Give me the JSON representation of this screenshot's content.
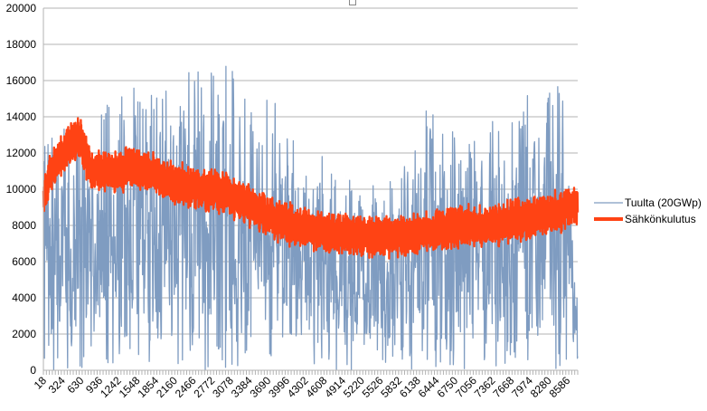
{
  "chart_data": {
    "type": "line",
    "title": "",
    "xlabel": "",
    "ylabel": "",
    "ylim": [
      0,
      20000
    ],
    "y_ticks": [
      "0",
      "2000",
      "4000",
      "6000",
      "8000",
      "10000",
      "12000",
      "14000",
      "16000",
      "18000",
      "20000"
    ],
    "x_ticks": [
      "18",
      "324",
      "630",
      "936",
      "1242",
      "1548",
      "1854",
      "2160",
      "2466",
      "2772",
      "3078",
      "3384",
      "3690",
      "3996",
      "4302",
      "4608",
      "4914",
      "5220",
      "5526",
      "5832",
      "6138",
      "6444",
      "6750",
      "7056",
      "7362",
      "7668",
      "7974",
      "8280",
      "8586"
    ],
    "x_range": [
      18,
      8760
    ],
    "grid": "horizontal",
    "legend_position": "right",
    "series": [
      {
        "name": "Tuulta (20GWp)",
        "color": "#7f9cc1",
        "kind": "noisy",
        "envelope_x": [
          18,
          400,
          800,
          1300,
          1550,
          1850,
          2300,
          2800,
          3100,
          3500,
          3800,
          4300,
          4800,
          5300,
          5800,
          6300,
          6800,
          7300,
          7700,
          8100,
          8300,
          8500,
          8760
        ],
        "envelope_y": [
          12500,
          13500,
          14000,
          16000,
          17500,
          15500,
          16500,
          16500,
          17000,
          14000,
          16000,
          13500,
          10500,
          10500,
          11000,
          14500,
          13500,
          13500,
          15000,
          15500,
          18000,
          17000,
          3500
        ]
      },
      {
        "name": "Sähkönkulutus",
        "color": "#ff4314",
        "kind": "band",
        "center_x": [
          18,
          150,
          350,
          600,
          800,
          1000,
          1300,
          1500,
          1850,
          2200,
          2600,
          3000,
          3300,
          3700,
          4100,
          4500,
          4900,
          5300,
          5700,
          6100,
          6500,
          6900,
          7300,
          7700,
          8100,
          8500,
          8760
        ],
        "center_y": [
          9500,
          11000,
          12000,
          13000,
          11000,
          11000,
          11000,
          11300,
          10800,
          10300,
          10000,
          9800,
          9300,
          8500,
          8000,
          7700,
          7500,
          7400,
          7400,
          7500,
          7800,
          8000,
          8000,
          8200,
          8500,
          8800,
          9300
        ],
        "amplitude_y": 1300
      }
    ]
  }
}
